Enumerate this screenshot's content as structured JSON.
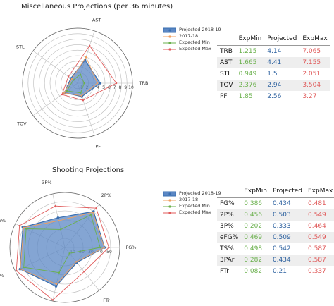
{
  "chart_data": [
    {
      "type": "radar",
      "title": "Miscellaneous Projections (per 36 minutes)",
      "axes": [
        "TRB",
        "AST",
        "STL",
        "TOV",
        "PF"
      ],
      "ticks": [
        "1",
        "2",
        "3",
        "4",
        "5",
        "6",
        "7",
        "8",
        "9",
        "10"
      ],
      "rmax": 10,
      "series": [
        {
          "name": "Projected 2018-19",
          "values": [
            4.14,
            4.41,
            1.5,
            2.94,
            2.56
          ],
          "color": "#3a6fb0",
          "fill": "#5b87c4"
        },
        {
          "name": "2017-18",
          "values": [
            3.6,
            5.0,
            1.3,
            3.0,
            2.4
          ],
          "color": "#f0a060"
        },
        {
          "name": "Expected Min",
          "values": [
            1.215,
            1.665,
            0.949,
            2.376,
            1.85
          ],
          "color": "#6ab04c"
        },
        {
          "name": "Expected Max",
          "values": [
            7.065,
            7.155,
            2.051,
            3.504,
            3.27
          ],
          "color": "#e05a5a"
        }
      ],
      "legend_position": "right"
    },
    {
      "type": "radar",
      "title": "Shooting Projections",
      "axes": [
        "FG%",
        "2P%",
        "3P%",
        "eFG%",
        "TS%",
        "3PAr",
        "FTr"
      ],
      "ticks": [
        "10",
        "20",
        "30",
        "40",
        "50"
      ],
      "rmax": 60,
      "series": [
        {
          "name": "Projected 2018-19",
          "values": [
            43.4,
            50.3,
            33.3,
            50.9,
            54.2,
            43.4,
            21.0
          ],
          "color": "#3a6fb0",
          "fill": "#5b87c4"
        },
        {
          "name": "2017-18",
          "values": [
            43.0,
            49.0,
            30.0,
            50.0,
            54.0,
            41.0,
            20.0
          ],
          "color": "#f0a060"
        },
        {
          "name": "Expected Min",
          "values": [
            38.6,
            45.6,
            20.2,
            46.9,
            49.8,
            28.2,
            8.2
          ],
          "color": "#6ab04c"
        },
        {
          "name": "Expected Max",
          "values": [
            48.1,
            54.9,
            46.4,
            54.9,
            58.7,
            58.7,
            33.7
          ],
          "color": "#e05a5a"
        }
      ],
      "legend_position": "right"
    }
  ],
  "misc_table": {
    "headers": [
      "",
      "ExpMin",
      "Projected",
      "ExpMax"
    ],
    "rows": [
      [
        "TRB",
        "1.215",
        "4.14",
        "7.065"
      ],
      [
        "AST",
        "1.665",
        "4.41",
        "7.155"
      ],
      [
        "STL",
        "0.949",
        "1.5",
        "2.051"
      ],
      [
        "TOV",
        "2.376",
        "2.94",
        "3.504"
      ],
      [
        "PF",
        "1.85",
        "2.56",
        "3.27"
      ]
    ]
  },
  "shooting_table": {
    "headers": [
      "",
      "ExpMin",
      "Projected",
      "ExpMax"
    ],
    "rows": [
      [
        "FG%",
        "0.386",
        "0.434",
        "0.481"
      ],
      [
        "2P%",
        "0.456",
        "0.503",
        "0.549"
      ],
      [
        "3P%",
        "0.202",
        "0.333",
        "0.464"
      ],
      [
        "eFG%",
        "0.469",
        "0.509",
        "0.549"
      ],
      [
        "TS%",
        "0.498",
        "0.542",
        "0.587"
      ],
      [
        "3PAr",
        "0.282",
        "0.434",
        "0.587"
      ],
      [
        "FTr",
        "0.082",
        "0.21",
        "0.337"
      ]
    ]
  }
}
